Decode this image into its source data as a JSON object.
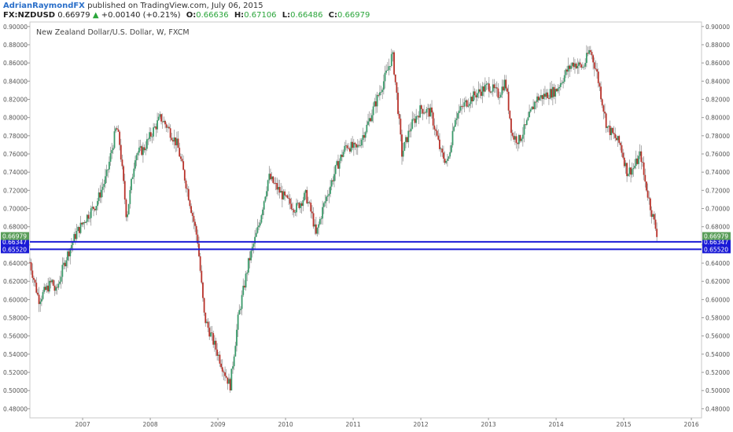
{
  "header": {
    "author": "AdrianRaymondFX",
    "published": "published on TradingView.com, July 06, 2015",
    "symbol": "FX:NZDUSD",
    "last": "0.66979",
    "change_arrow": "▲",
    "change": "+0.00140 (+0.21%)",
    "o_label": "O:",
    "o_value": "0.66636",
    "h_label": "H:",
    "h_value": "0.67106",
    "l_label": "L:",
    "l_value": "0.66486",
    "c_label": "C:",
    "c_value": "0.66979"
  },
  "chart_data": {
    "type": "candlestick",
    "title": "New Zealand Dollar/U.S. Dollar, W, FXCM",
    "ylim": [
      0.47,
      0.905
    ],
    "xlim": [
      2006.22,
      2016.15
    ],
    "y_ticks": [
      "0.48000",
      "0.50000",
      "0.52000",
      "0.54000",
      "0.56000",
      "0.58000",
      "0.60000",
      "0.62000",
      "0.64000",
      "0.66000",
      "0.68000",
      "0.70000",
      "0.72000",
      "0.74000",
      "0.76000",
      "0.78000",
      "0.80000",
      "0.82000",
      "0.84000",
      "0.86000",
      "0.88000",
      "0.90000"
    ],
    "x_ticks": [
      {
        "label": "2007",
        "x": 2007
      },
      {
        "label": "2008",
        "x": 2008
      },
      {
        "label": "2009",
        "x": 2009
      },
      {
        "label": "2010",
        "x": 2010
      },
      {
        "label": "2011",
        "x": 2011
      },
      {
        "label": "2012",
        "x": 2012
      },
      {
        "label": "2013",
        "x": 2013
      },
      {
        "label": "2014",
        "x": 2014
      },
      {
        "label": "2015",
        "x": 2015
      },
      {
        "label": "2016",
        "x": 2016
      }
    ],
    "price_path": [
      [
        2006.22,
        0.641
      ],
      [
        2006.35,
        0.6
      ],
      [
        2006.55,
        0.62
      ],
      [
        2006.6,
        0.607
      ],
      [
        2006.75,
        0.645
      ],
      [
        2006.9,
        0.672
      ],
      [
        2007.05,
        0.69
      ],
      [
        2007.2,
        0.705
      ],
      [
        2007.35,
        0.735
      ],
      [
        2007.5,
        0.79
      ],
      [
        2007.55,
        0.77
      ],
      [
        2007.65,
        0.69
      ],
      [
        2007.78,
        0.76
      ],
      [
        2007.9,
        0.765
      ],
      [
        2008.0,
        0.78
      ],
      [
        2008.15,
        0.8
      ],
      [
        2008.25,
        0.79
      ],
      [
        2008.4,
        0.77
      ],
      [
        2008.55,
        0.72
      ],
      [
        2008.7,
        0.665
      ],
      [
        2008.8,
        0.58
      ],
      [
        2008.9,
        0.56
      ],
      [
        2009.0,
        0.54
      ],
      [
        2009.1,
        0.52
      ],
      [
        2009.18,
        0.505
      ],
      [
        2009.3,
        0.58
      ],
      [
        2009.45,
        0.64
      ],
      [
        2009.6,
        0.68
      ],
      [
        2009.75,
        0.735
      ],
      [
        2009.9,
        0.72
      ],
      [
        2010.0,
        0.71
      ],
      [
        2010.15,
        0.7
      ],
      [
        2010.3,
        0.715
      ],
      [
        2010.4,
        0.69
      ],
      [
        2010.45,
        0.67
      ],
      [
        2010.55,
        0.7
      ],
      [
        2010.75,
        0.745
      ],
      [
        2010.9,
        0.77
      ],
      [
        2011.05,
        0.765
      ],
      [
        2011.2,
        0.79
      ],
      [
        2011.35,
        0.82
      ],
      [
        2011.5,
        0.85
      ],
      [
        2011.58,
        0.87
      ],
      [
        2011.65,
        0.82
      ],
      [
        2011.72,
        0.76
      ],
      [
        2011.85,
        0.79
      ],
      [
        2012.0,
        0.81
      ],
      [
        2012.15,
        0.805
      ],
      [
        2012.3,
        0.76
      ],
      [
        2012.4,
        0.75
      ],
      [
        2012.5,
        0.8
      ],
      [
        2012.65,
        0.815
      ],
      [
        2012.8,
        0.825
      ],
      [
        2013.0,
        0.835
      ],
      [
        2013.15,
        0.825
      ],
      [
        2013.25,
        0.84
      ],
      [
        2013.35,
        0.78
      ],
      [
        2013.45,
        0.775
      ],
      [
        2013.55,
        0.79
      ],
      [
        2013.7,
        0.82
      ],
      [
        2013.85,
        0.825
      ],
      [
        2014.0,
        0.83
      ],
      [
        2014.15,
        0.85
      ],
      [
        2014.25,
        0.86
      ],
      [
        2014.4,
        0.855
      ],
      [
        2014.5,
        0.875
      ],
      [
        2014.6,
        0.85
      ],
      [
        2014.75,
        0.79
      ],
      [
        2014.85,
        0.78
      ],
      [
        2014.95,
        0.77
      ],
      [
        2015.05,
        0.74
      ],
      [
        2015.15,
        0.745
      ],
      [
        2015.25,
        0.76
      ],
      [
        2015.3,
        0.735
      ],
      [
        2015.4,
        0.7
      ],
      [
        2015.5,
        0.67
      ]
    ],
    "horizontal_lines": [
      {
        "value": 0.66347,
        "label": "0.66347",
        "color": "#1a1ad6"
      },
      {
        "value": 0.6552,
        "label": "0.65520",
        "color": "#1a1ad6"
      }
    ],
    "last_price": {
      "value": 0.66979,
      "label": "0.66979",
      "color": "#5a9e5a"
    },
    "up_color": "#3a9a6a",
    "down_color": "#b8322a",
    "wick_color": "#888888",
    "grid": false
  }
}
